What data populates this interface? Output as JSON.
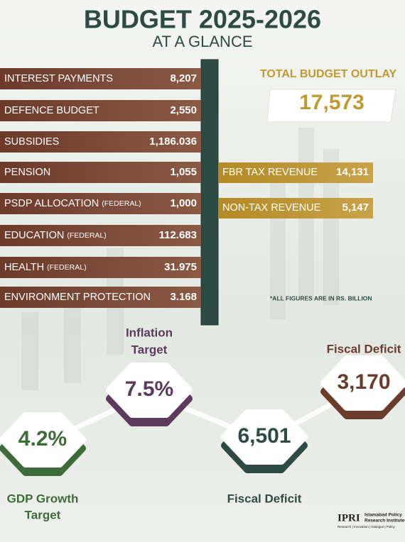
{
  "header": {
    "title": "BUDGET 2025-2026",
    "subtitle": "AT A GLANCE"
  },
  "expenditure": [
    {
      "label": "INTEREST PAYMENTS",
      "value": "8,207"
    },
    {
      "label": "DEFENCE BUDGET",
      "value": "2,550"
    },
    {
      "label": "SUBSIDIES",
      "value": "1,186.036"
    },
    {
      "label": "PENSION",
      "value": "1,055"
    },
    {
      "label": "PSDP ALLOCATION",
      "sublabel": "(FEDERAL)",
      "value": "1,000"
    },
    {
      "label": "EDUCATION",
      "sublabel": "(FEDERAL)",
      "value": "112.683"
    },
    {
      "label": "HEALTH",
      "sublabel": "(FEDERAL)",
      "value": "31.975"
    },
    {
      "label": "ENVIRONMENT PROTECTION",
      "value": "3.168"
    }
  ],
  "total": {
    "label": "TOTAL BUDGET OUTLAY",
    "value": "17,573"
  },
  "revenue": [
    {
      "label": "FBR TAX REVENUE",
      "value": "14,131"
    },
    {
      "label": "NON-TAX REVENUE",
      "value": "5,147"
    }
  ],
  "note": "*ALL FIGURES ARE IN RS. BILLION",
  "indicators": [
    {
      "label_lines": [
        "GDP Growth",
        "Target"
      ],
      "value": "4.2%"
    },
    {
      "label_lines": [
        "Inflation",
        "Target"
      ],
      "value": "7.5%"
    },
    {
      "label_lines": [
        "Fiscal Deficit"
      ],
      "value": "6,501"
    },
    {
      "label_lines": [
        "Fiscal Deficit"
      ],
      "value": "3,170"
    }
  ],
  "logo": {
    "mark": "IPRI",
    "name_lines": [
      "Islamabad Policy",
      "Research Institute"
    ],
    "tagline": "Research | Innovation | Dialogue | Policy"
  }
}
